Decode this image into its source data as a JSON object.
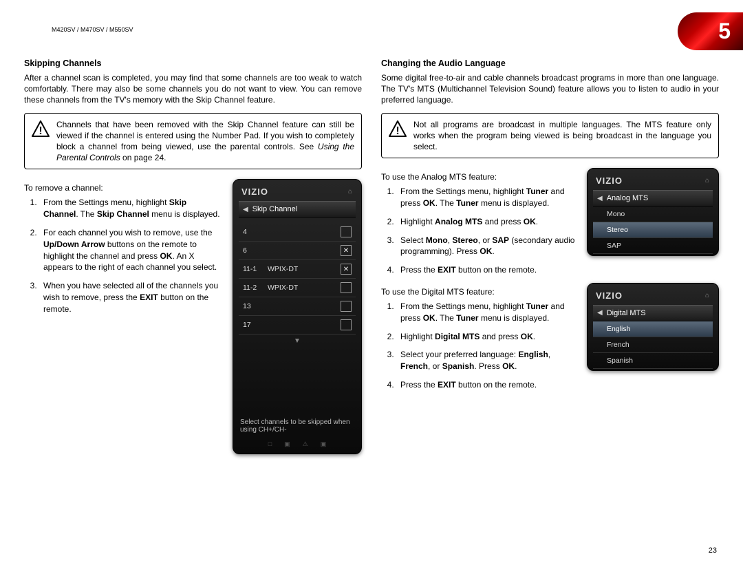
{
  "header": {
    "model_line": "M420SV / M470SV / M550SV",
    "chapter_number": "5",
    "page_number": "23"
  },
  "left": {
    "title": "Skipping Channels",
    "intro": "After a channel scan is completed, you may find that some channels are too weak to watch comfortably. There may also be some channels you do not want to view. You can remove these channels from the TV's memory with the Skip Channel feature.",
    "warning": "Channels that have been removed with the Skip Channel feature can still be viewed if the channel is entered using the Number Pad. If you wish to completely block a channel from being viewed, use the parental controls. See Using the Parental Controls on page 24.",
    "lead": "To remove a channel:",
    "steps": [
      "From the Settings menu, highlight <b>Skip Channel</b>. The <b>Skip Channel</b> menu is displayed.",
      "For each channel you wish to remove, use the <b>Up/Down Arrow</b> buttons on the remote to highlight the channel and press <b>OK</b>. An X appears to the right of each channel you select.",
      "When you have selected all of the channels you wish to remove, press the <b>EXIT</b> button on the remote."
    ],
    "tv": {
      "brand": "VIZIO",
      "menu_title": "Skip Channel",
      "rows": [
        {
          "num": "4",
          "name": "",
          "checked": false
        },
        {
          "num": "6",
          "name": "",
          "checked": true
        },
        {
          "num": "11-1",
          "name": "WPIX-DT",
          "checked": true
        },
        {
          "num": "11-2",
          "name": "WPIX-DT",
          "checked": false
        },
        {
          "num": "13",
          "name": "",
          "checked": false
        },
        {
          "num": "17",
          "name": "",
          "checked": false
        }
      ],
      "hint": "Select channels to be skipped when using CH+/CH-"
    }
  },
  "right": {
    "title": "Changing the Audio Language",
    "intro": "Some digital free-to-air and cable channels broadcast programs in more than one language. The TV's MTS (Multichannel Television Sound) feature allows you to listen to audio in your preferred language.",
    "warning": "Not all programs are broadcast in multiple languages. The MTS feature only works when the program being viewed is being broadcast in the language you select.",
    "analog_lead": "To use the Analog MTS feature:",
    "analog_steps": [
      "From the Settings menu, highlight <b>Tuner</b> and press <b>OK</b>. The <b>Tuner</b> menu is displayed.",
      "Highlight <b>Analog MTS</b> and press <b>OK</b>.",
      "Select <b>Mono</b>, <b>Stereo</b>, or <b>SAP</b> (secondary audio programming). Press <b>OK</b>.",
      "Press the <b>EXIT</b> button on the remote."
    ],
    "digital_lead": "To use the Digital MTS feature:",
    "digital_steps": [
      "From the Settings menu, highlight <b>Tuner</b> and press <b>OK</b>. The <b>Tuner</b> menu is displayed.",
      "Highlight <b>Digital MTS</b> and press <b>OK</b>.",
      "Select your preferred language: <b>English</b>, <b>French</b>, or <b>Spanish</b>. Press <b>OK</b>.",
      "Press the <b>EXIT</b> button on the remote."
    ],
    "tv_analog": {
      "brand": "VIZIO",
      "menu_title": "Analog MTS",
      "options": [
        "Mono",
        "Stereo",
        "SAP"
      ],
      "selected": 1
    },
    "tv_digital": {
      "brand": "VIZIO",
      "menu_title": "Digital MTS",
      "options": [
        "English",
        "French",
        "Spanish"
      ],
      "selected": 0
    }
  }
}
